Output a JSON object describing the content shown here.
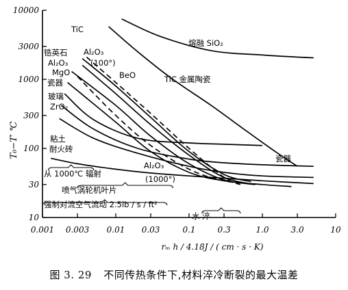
{
  "chart_data": {
    "type": "line",
    "xscale": "log",
    "yscale": "log",
    "xlim": [
      0.001,
      10
    ],
    "ylim": [
      10,
      10000
    ],
    "xticks": [
      "0.001",
      "0.003",
      "0.01",
      "0.03",
      "0.1",
      "0.3",
      "1.0",
      "3.0",
      "10"
    ],
    "xtick_values": [
      0.001,
      0.003,
      0.01,
      0.03,
      0.1,
      0.3,
      1.0,
      3.0,
      10
    ],
    "yticks": [
      "10000",
      "3000",
      "1000",
      "300",
      "100",
      "30",
      "10"
    ],
    "ytick_values": [
      10000,
      3000,
      1000,
      300,
      100,
      30,
      10
    ],
    "ylabel": "T₀−T′ ℃",
    "xlabel": "rₘ h / 4.18J / ( cm · s · K)",
    "series": [
      {
        "name": "熔融 SiO₂",
        "style": "solid",
        "x": [
          0.012,
          0.04,
          0.2,
          1.0,
          3.0,
          5.0
        ],
        "y": [
          7500,
          4200,
          2600,
          2250,
          2100,
          2050
        ]
      },
      {
        "name": "TiC 金属陶瓷",
        "style": "solid",
        "x": [
          0.008,
          0.02,
          0.06,
          0.2,
          0.6,
          1.5,
          3.0
        ],
        "y": [
          5800,
          2500,
          1000,
          420,
          180,
          90,
          55
        ]
      },
      {
        "name": "TiC",
        "style": "solid",
        "x": [
          0.0035,
          0.01,
          0.03,
          0.1,
          0.3,
          0.7
        ],
        "y": [
          2000,
          800,
          280,
          90,
          42,
          33
        ]
      },
      {
        "name": "BeO",
        "style": "dashed",
        "x": [
          0.004,
          0.01,
          0.03,
          0.1,
          0.3,
          0.5
        ],
        "y": [
          2100,
          900,
          320,
          100,
          38,
          30
        ]
      },
      {
        "name": "Al₂O₃ (100°)",
        "style": "solid",
        "x": [
          0.0035,
          0.01,
          0.03,
          0.1,
          0.3,
          0.8
        ],
        "y": [
          1600,
          620,
          220,
          80,
          38,
          30
        ]
      },
      {
        "name": "锆英石",
        "style": "solid",
        "x": [
          0.0025,
          0.01,
          0.03,
          0.1,
          0.3,
          0.8
        ],
        "y": [
          1300,
          420,
          150,
          60,
          35,
          30
        ]
      },
      {
        "name": "Al₂O₃ (1000°)",
        "style": "dashed",
        "x": [
          0.003,
          0.01,
          0.03,
          0.1,
          0.3,
          1.0
        ],
        "y": [
          1100,
          300,
          110,
          50,
          34,
          30
        ]
      },
      {
        "name": "MgO",
        "style": "solid",
        "x": [
          0.0022,
          0.01,
          0.03,
          0.1,
          0.3,
          1.0,
          2.5
        ],
        "y": [
          900,
          240,
          90,
          45,
          34,
          30,
          28
        ]
      },
      {
        "name": "瓷器",
        "style": "solid",
        "x": [
          0.002,
          0.005,
          0.02,
          0.1,
          0.3,
          1.0
        ],
        "y": [
          620,
          260,
          140,
          120,
          115,
          110
        ]
      },
      {
        "name": "玻璃",
        "style": "solid",
        "x": [
          0.0018,
          0.005,
          0.02,
          0.1,
          0.3,
          1.0,
          5.0
        ],
        "y": [
          420,
          190,
          100,
          70,
          62,
          58,
          55
        ]
      },
      {
        "name": "ZrO₂",
        "style": "solid",
        "x": [
          0.0017,
          0.005,
          0.02,
          0.1,
          0.3,
          1.0,
          5.0
        ],
        "y": [
          270,
          140,
          85,
          55,
          45,
          40,
          38
        ]
      },
      {
        "name": "粘土耐火砖",
        "style": "solid",
        "x": [
          0.0013,
          0.003,
          0.01,
          0.03,
          0.1,
          0.3,
          1.0,
          5.0
        ],
        "y": [
          72,
          60,
          50,
          44,
          40,
          37,
          34,
          31
        ]
      }
    ],
    "annotations": {
      "sio2": "熔融 SiO₂",
      "tic": "TiC",
      "al2o3_top": "Al₂O₃",
      "al100": "(100°)",
      "zircon": "锆英石",
      "al2o3_left": "Al₂O₃",
      "mgo": "MgO",
      "porcelain_left": "瓷器",
      "glass": "玻璃",
      "zro2": "ZrO₂",
      "beo": "BeO",
      "ticcermet": "TiC 金属陶瓷",
      "clay1": "粘土",
      "clay2": "耐火砖",
      "porcelain_right": "瓷器",
      "al2o3_bottom": "Al₂O₃",
      "al1000": "(1000°)"
    },
    "conditions": [
      {
        "label": "从 1000℃ 辐射",
        "x_from": 0.0012,
        "x_to": 0.005
      },
      {
        "label": "喷气涡轮机叶片",
        "x_from": 0.003,
        "x_to": 0.06
      },
      {
        "label": "强制对流空气流动 2.5lb / s / ft²",
        "x_from": 0.001,
        "x_to": 0.05
      },
      {
        "label": "水  淬",
        "x_from": 0.15,
        "x_to": 0.5
      }
    ]
  },
  "caption": {
    "number": "图 3. 29",
    "text": "不同传热条件下,材料淬冷断裂的最大温差"
  }
}
